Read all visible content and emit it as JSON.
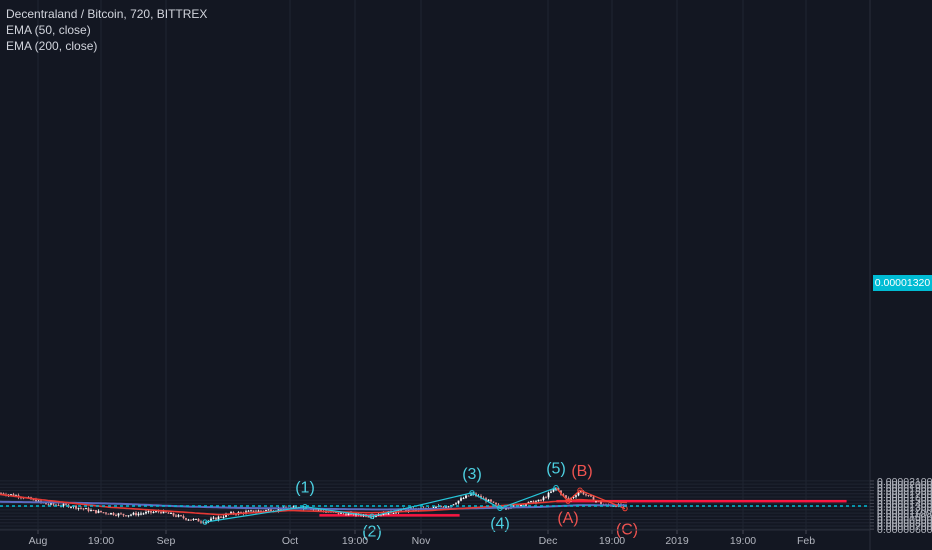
{
  "header": {
    "title": "Decentraland / Bitcoin, 720, BITTREX",
    "indicators": [
      "EMA (50, close)",
      "EMA (200, close)"
    ]
  },
  "last_price": "0.00001320",
  "colors": {
    "background": "#131722",
    "grid": "#1f2431",
    "axis_text": "#b2b5be",
    "candle_up": "#ffffff",
    "candle_down": "#ef9a9a",
    "ema50": "#e53935",
    "ema200": "#5c6bc0",
    "wave_line": "#26c6da",
    "wave_label": "#4dd0e1",
    "correction_line": "#f44336",
    "correction_label": "#ef5350",
    "zone_fill": "#b71c1c",
    "zone_stroke": "#ff1744",
    "price_line": "#00bcd4"
  },
  "chart_data": {
    "type": "candlestick",
    "symbol": "Decentraland / Bitcoin",
    "interval": "720",
    "exchange": "BITTREX",
    "x_tick_labels": [
      "Aug",
      "19:00",
      "Sep",
      "Oct",
      "19:00",
      "Nov",
      "Dec",
      "19:00",
      "2019",
      "19:00",
      "Feb"
    ],
    "y_tick_labels": [
      "0.00000600",
      "0.00000700",
      "0.00000800",
      "0.00000900",
      "0.00001000",
      "0.00001100",
      "0.00001200",
      "0.00001300",
      "0.00001400",
      "0.00001500",
      "0.00001600",
      "0.00001700",
      "0.00001800",
      "0.00001900",
      "0.00002000",
      "0.00002100"
    ],
    "y_range": [
      5.6e-06,
      2.16e-05
    ],
    "last_price": 1.32e-05,
    "ema50_anchors": [
      [
        0,
        1.68e-05
      ],
      [
        40,
        1.52e-05
      ],
      [
        110,
        1.28e-05
      ],
      [
        160,
        1.18e-05
      ],
      [
        220,
        1.05e-05
      ],
      [
        290,
        1.18e-05
      ],
      [
        370,
        1.11e-05
      ],
      [
        430,
        1.18e-05
      ],
      [
        480,
        1.28e-05
      ],
      [
        530,
        1.4e-05
      ],
      [
        580,
        1.52e-05
      ],
      [
        627,
        1.43e-05
      ]
    ],
    "ema200_anchors": [
      [
        0,
        1.45e-05
      ],
      [
        60,
        1.43e-05
      ],
      [
        120,
        1.39e-05
      ],
      [
        180,
        1.31e-05
      ],
      [
        240,
        1.26e-05
      ],
      [
        300,
        1.24e-05
      ],
      [
        380,
        1.21e-05
      ],
      [
        440,
        1.23e-05
      ],
      [
        490,
        1.26e-05
      ],
      [
        540,
        1.29e-05
      ],
      [
        580,
        1.35e-05
      ],
      [
        627,
        1.34e-05
      ]
    ],
    "elliott_wave": {
      "labels": [
        "(1)",
        "(2)",
        "(3)",
        "(4)",
        "(5)"
      ],
      "points": [
        [
          205,
          8.2e-06
        ],
        [
          305,
          1.3e-05
        ],
        [
          372,
          1e-05
        ],
        [
          472,
          1.73e-05
        ],
        [
          500,
          1.25e-05
        ],
        [
          556,
          1.89e-05
        ]
      ]
    },
    "abc_correction": {
      "labels": [
        "(A)",
        "(B)",
        "(C)"
      ],
      "points": [
        [
          556,
          1.89e-05
        ],
        [
          568,
          1.47e-05
        ],
        [
          580,
          1.81e-05
        ],
        [
          625,
          1.24e-05
        ]
      ]
    },
    "zones": [
      {
        "x_from": 320,
        "x_to": 459,
        "low": 1.01e-05,
        "high": 1.05e-05
      },
      {
        "x_from": 557,
        "x_to": 846,
        "low": 1.45e-05,
        "high": 1.49e-05
      }
    ]
  }
}
